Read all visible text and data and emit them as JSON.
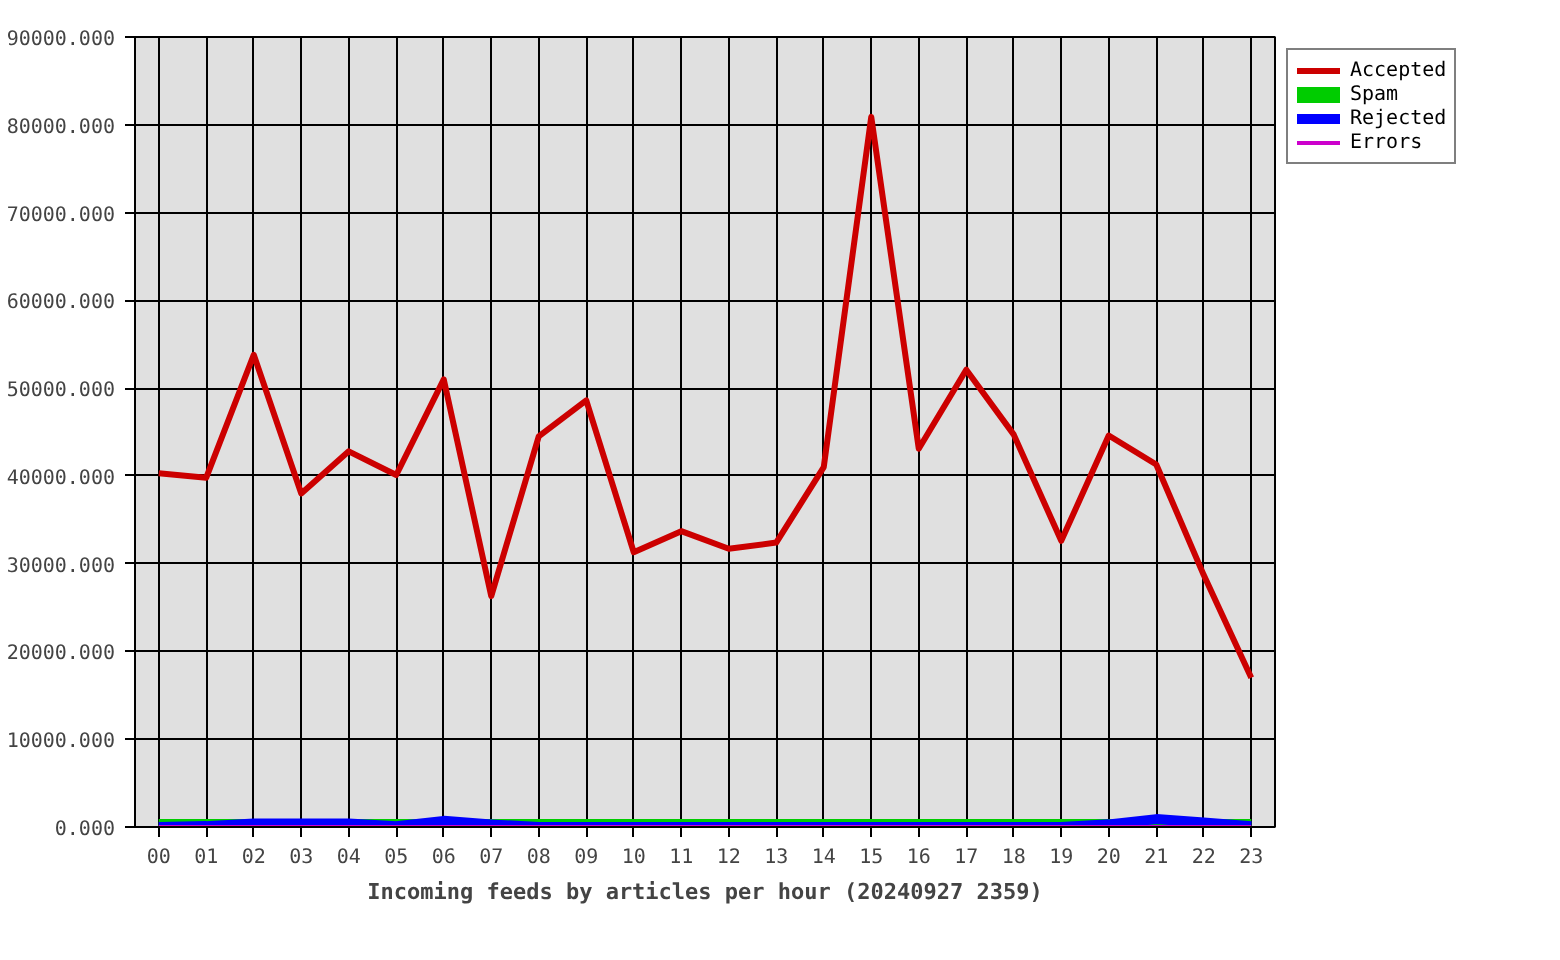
{
  "chart_data": {
    "type": "line",
    "xlabel": "Incoming feeds by articles per hour (20240927 2359)",
    "categories": [
      "00",
      "01",
      "02",
      "03",
      "04",
      "05",
      "06",
      "07",
      "08",
      "09",
      "10",
      "11",
      "12",
      "13",
      "14",
      "15",
      "16",
      "17",
      "18",
      "19",
      "20",
      "21",
      "22",
      "23"
    ],
    "series": [
      {
        "name": "Accepted",
        "color": "#cc0000",
        "values": [
          40300,
          39800,
          53800,
          38000,
          42800,
          40100,
          51000,
          26300,
          44500,
          48600,
          31300,
          33700,
          31700,
          32400,
          41000,
          80900,
          43100,
          52100,
          44700,
          32600,
          44600,
          41300,
          28700,
          17000
        ]
      },
      {
        "name": "Spam",
        "color": "#00cc00",
        "values": [
          0,
          0,
          0,
          0,
          0,
          0,
          0,
          0,
          0,
          0,
          0,
          0,
          0,
          0,
          0,
          0,
          0,
          0,
          0,
          0,
          0,
          0,
          0,
          0
        ]
      },
      {
        "name": "Rejected",
        "color": "#0000ff",
        "values": [
          0,
          100,
          400,
          400,
          400,
          100,
          700,
          300,
          0,
          0,
          0,
          0,
          0,
          0,
          0,
          0,
          0,
          0,
          0,
          0,
          300,
          900,
          500,
          100
        ]
      },
      {
        "name": "Errors",
        "color": "#cc00cc",
        "values": [
          0,
          0,
          0,
          0,
          0,
          0,
          0,
          0,
          0,
          0,
          0,
          0,
          0,
          0,
          0,
          0,
          0,
          0,
          0,
          0,
          0,
          0,
          0,
          0
        ]
      }
    ],
    "ylim": [
      0,
      90000
    ],
    "yticks": [
      {
        "value": 0,
        "label": "0.000"
      },
      {
        "value": 10000,
        "label": "10000.000"
      },
      {
        "value": 20000,
        "label": "20000.000"
      },
      {
        "value": 30000,
        "label": "30000.000"
      },
      {
        "value": 40000,
        "label": "40000.000"
      },
      {
        "value": 50000,
        "label": "50000.000"
      },
      {
        "value": 60000,
        "label": "60000.000"
      },
      {
        "value": 70000,
        "label": "70000.000"
      },
      {
        "value": 80000,
        "label": "80000.000"
      },
      {
        "value": 90000,
        "label": "90000.000"
      }
    ],
    "grid": true,
    "legend": "top right",
    "line_style": "solid"
  }
}
